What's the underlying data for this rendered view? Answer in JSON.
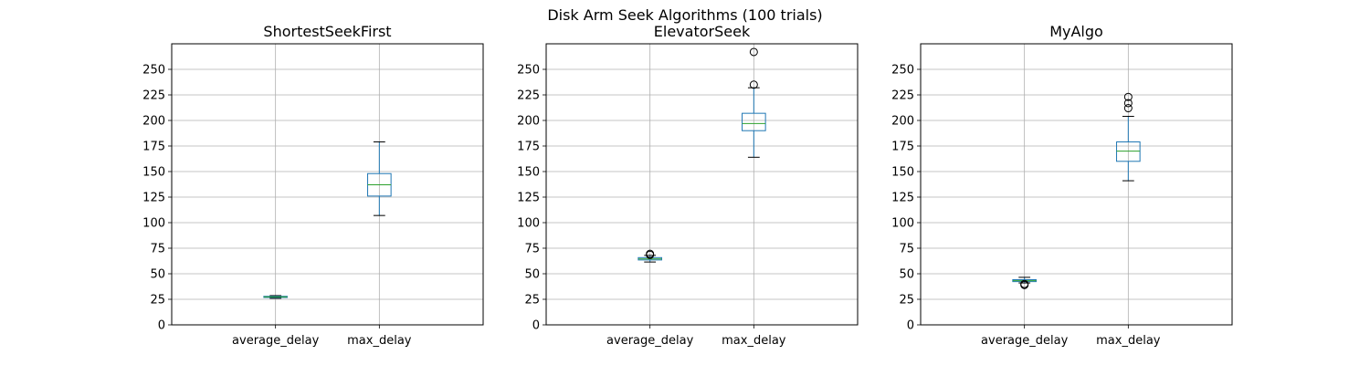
{
  "figure": {
    "suptitle": "Disk Arm Seek Algorithms (100 trials)"
  },
  "colors": {
    "box": "#1f77b4",
    "median": "#2ca02c",
    "whisker_cap": "#000000",
    "flier": "#000000",
    "grid": "#b0b0b0",
    "axes": "#000000"
  },
  "chart_data": [
    {
      "type": "boxplot",
      "title": "ShortestSeekFirst",
      "categories": [
        "average_delay",
        "max_delay"
      ],
      "ylim": [
        0,
        275
      ],
      "yticks": [
        0,
        25,
        50,
        75,
        100,
        125,
        150,
        175,
        200,
        225,
        250
      ],
      "grid": true,
      "boxes": [
        {
          "category": "average_delay",
          "whislo": 26,
          "q1": 26.8,
          "median": 27.3,
          "q3": 27.9,
          "whishi": 28.6,
          "fliers": []
        },
        {
          "category": "max_delay",
          "whislo": 107,
          "q1": 126,
          "median": 137,
          "q3": 148,
          "whishi": 179,
          "fliers": []
        }
      ]
    },
    {
      "type": "boxplot",
      "title": "ElevatorSeek",
      "categories": [
        "average_delay",
        "max_delay"
      ],
      "ylim": [
        0,
        275
      ],
      "yticks": [
        0,
        25,
        50,
        75,
        100,
        125,
        150,
        175,
        200,
        225,
        250
      ],
      "grid": true,
      "boxes": [
        {
          "category": "average_delay",
          "whislo": 61.5,
          "q1": 63.5,
          "median": 64.5,
          "q3": 65.8,
          "whishi": 68,
          "fliers": [
            68.5,
            69.5
          ]
        },
        {
          "category": "max_delay",
          "whislo": 164,
          "q1": 190,
          "median": 197,
          "q3": 207,
          "whishi": 232,
          "fliers": [
            235,
            267
          ]
        }
      ]
    },
    {
      "type": "boxplot",
      "title": "MyAlgo",
      "categories": [
        "average_delay",
        "max_delay"
      ],
      "ylim": [
        0,
        275
      ],
      "yticks": [
        0,
        25,
        50,
        75,
        100,
        125,
        150,
        175,
        200,
        225,
        250
      ],
      "grid": true,
      "boxes": [
        {
          "category": "average_delay",
          "whislo": 41,
          "q1": 42.3,
          "median": 43.2,
          "q3": 44.2,
          "whishi": 46.5,
          "fliers": [
            39,
            40
          ]
        },
        {
          "category": "max_delay",
          "whislo": 141,
          "q1": 160,
          "median": 170,
          "q3": 179,
          "whishi": 204,
          "fliers": [
            212,
            217,
            223
          ]
        }
      ]
    }
  ]
}
